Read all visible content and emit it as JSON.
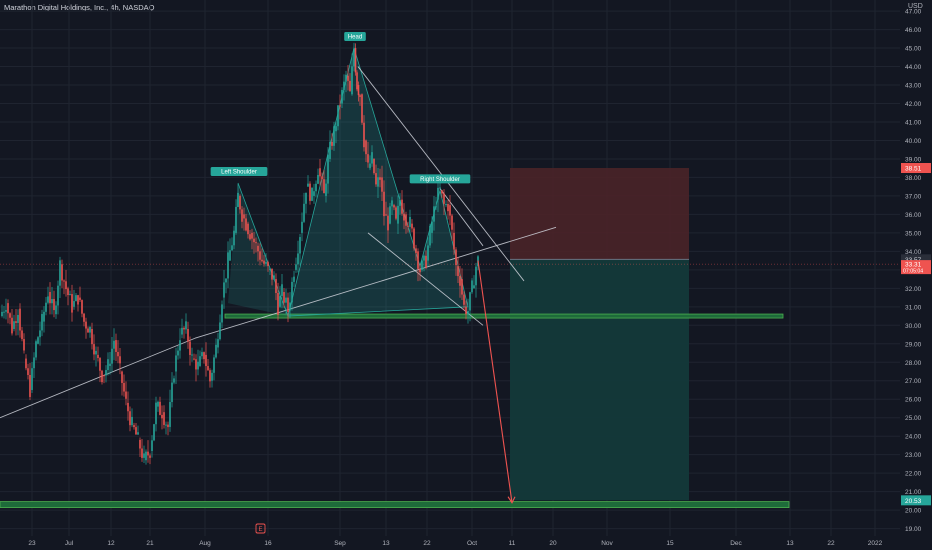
{
  "header": {
    "title": "Marathon Digital Holdings, Inc., 4h, NASDAQ",
    "currency": "USD"
  },
  "colors": {
    "background": "#131722",
    "grid": "#1f2430",
    "bull": "#26a69a",
    "bear": "#ef5350",
    "axis_text": "#b2b5be",
    "pattern_fill": "#26a69a",
    "support_fill": "#1e6b3a",
    "support_stroke": "#4caf50",
    "stop_zone": "#4a2328",
    "target_zone": "#13393a",
    "trend_line": "#d1d4dc",
    "projection_arrow": "#ef5350",
    "label_bg": "#26a69a"
  },
  "chart_data": {
    "type": "candlestick",
    "ylim": [
      18.6,
      47.6
    ],
    "y_ticks": [
      "19.00",
      "20.00",
      "21.00",
      "22.00",
      "23.00",
      "24.00",
      "25.00",
      "26.00",
      "27.00",
      "28.00",
      "29.00",
      "30.00",
      "31.00",
      "32.00",
      "33.00",
      "34.00",
      "35.00",
      "36.00",
      "37.00",
      "38.00",
      "39.00",
      "40.00",
      "41.00",
      "42.00",
      "43.00",
      "44.00",
      "45.00",
      "46.00",
      "47.00"
    ],
    "x_ticks": [
      {
        "label": "23",
        "x": 32
      },
      {
        "label": "Jul",
        "x": 69
      },
      {
        "label": "12",
        "x": 111
      },
      {
        "label": "21",
        "x": 150
      },
      {
        "label": "Aug",
        "x": 205
      },
      {
        "label": "16",
        "x": 268
      },
      {
        "label": "Sep",
        "x": 340
      },
      {
        "label": "13",
        "x": 386
      },
      {
        "label": "22",
        "x": 427
      },
      {
        "label": "Oct",
        "x": 472
      },
      {
        "label": "11",
        "x": 512
      },
      {
        "label": "20",
        "x": 553
      },
      {
        "label": "Nov",
        "x": 607
      },
      {
        "label": "15",
        "x": 670
      },
      {
        "label": "Dec",
        "x": 736
      },
      {
        "label": "13",
        "x": 790
      },
      {
        "label": "22",
        "x": 831
      },
      {
        "label": "2022",
        "x": 875
      }
    ],
    "price_path": [
      [
        0,
        30.5
      ],
      [
        6,
        31.2
      ],
      [
        12,
        29.8
      ],
      [
        18,
        30.9
      ],
      [
        24,
        28.2
      ],
      [
        30,
        26.5
      ],
      [
        36,
        29.0
      ],
      [
        42,
        30.2
      ],
      [
        48,
        31.8
      ],
      [
        54,
        30.6
      ],
      [
        60,
        33.3
      ],
      [
        66,
        32.0
      ],
      [
        72,
        31.0
      ],
      [
        78,
        31.5
      ],
      [
        84,
        30.2
      ],
      [
        90,
        29.8
      ],
      [
        96,
        28.4
      ],
      [
        102,
        27.3
      ],
      [
        108,
        27.8
      ],
      [
        114,
        29.2
      ],
      [
        120,
        27.5
      ],
      [
        126,
        25.8
      ],
      [
        132,
        24.6
      ],
      [
        138,
        23.8
      ],
      [
        144,
        22.7
      ],
      [
        150,
        23.2
      ],
      [
        156,
        25.6
      ],
      [
        162,
        25.3
      ],
      [
        168,
        24.5
      ],
      [
        174,
        27.5
      ],
      [
        180,
        29.5
      ],
      [
        186,
        29.8
      ],
      [
        192,
        28.2
      ],
      [
        198,
        27.8
      ],
      [
        204,
        28.4
      ],
      [
        210,
        27.0
      ],
      [
        216,
        28.8
      ],
      [
        222,
        31.5
      ],
      [
        228,
        33.5
      ],
      [
        234,
        35.0
      ],
      [
        238,
        37.0
      ],
      [
        242,
        36.0
      ],
      [
        246,
        35.5
      ],
      [
        250,
        35.0
      ],
      [
        256,
        34.3
      ],
      [
        262,
        33.5
      ],
      [
        268,
        33.0
      ],
      [
        274,
        32.5
      ],
      [
        278,
        31.0
      ],
      [
        282,
        31.8
      ],
      [
        288,
        30.8
      ],
      [
        294,
        33.0
      ],
      [
        300,
        35.0
      ],
      [
        306,
        37.5
      ],
      [
        312,
        37.0
      ],
      [
        318,
        38.5
      ],
      [
        324,
        37.0
      ],
      [
        328,
        39.0
      ],
      [
        334,
        40.5
      ],
      [
        340,
        42.0
      ],
      [
        346,
        43.5
      ],
      [
        350,
        42.5
      ],
      [
        354,
        45.0
      ],
      [
        357,
        43.0
      ],
      [
        360,
        42.5
      ],
      [
        364,
        40.0
      ],
      [
        368,
        38.5
      ],
      [
        372,
        39.0
      ],
      [
        376,
        37.5
      ],
      [
        380,
        38.0
      ],
      [
        384,
        36.0
      ],
      [
        388,
        35.5
      ],
      [
        392,
        36.5
      ],
      [
        396,
        35.5
      ],
      [
        400,
        36.8
      ],
      [
        404,
        36.0
      ],
      [
        410,
        35.5
      ],
      [
        416,
        34.0
      ],
      [
        420,
        33.0
      ],
      [
        426,
        33.5
      ],
      [
        430,
        35.0
      ],
      [
        436,
        36.8
      ],
      [
        440,
        37.3
      ],
      [
        444,
        36.5
      ],
      [
        448,
        36.5
      ],
      [
        452,
        35.0
      ],
      [
        456,
        33.2
      ],
      [
        460,
        32.5
      ],
      [
        464,
        31.0
      ],
      [
        468,
        30.8
      ],
      [
        472,
        32.0
      ],
      [
        476,
        33.2
      ],
      [
        478,
        33.5
      ]
    ],
    "pattern_labels": [
      {
        "text": "Head",
        "price": 45.0
      },
      {
        "text": "Left Shoulder",
        "price": 37.7
      },
      {
        "text": "Right Shoulder",
        "price": 37.3
      }
    ],
    "support_levels": [
      30.5,
      20.3
    ],
    "position": {
      "entry": 33.57,
      "stop": 38.51,
      "target": 20.53
    },
    "price_labels": [
      {
        "text": "38.51",
        "kind": "stop"
      },
      {
        "text": "33.57",
        "kind": "entry"
      },
      {
        "text": "33.31",
        "kind": "current"
      },
      {
        "text": "07:05:04",
        "kind": "countdown"
      },
      {
        "text": "20.53",
        "kind": "target"
      }
    ],
    "earnings_marker": "E"
  }
}
